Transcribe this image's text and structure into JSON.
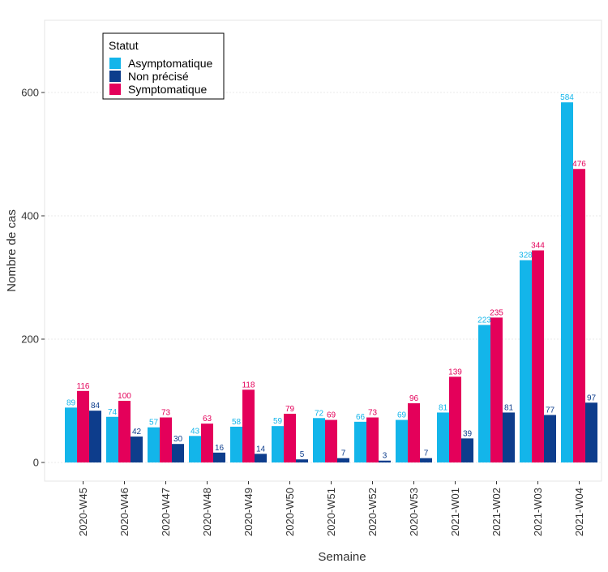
{
  "chart_data": {
    "type": "bar",
    "categories": [
      "2020-W45",
      "2020-W46",
      "2020-W47",
      "2020-W48",
      "2020-W49",
      "2020-W50",
      "2020-W51",
      "2020-W52",
      "2020-W53",
      "2021-W01",
      "2021-W02",
      "2021-W03",
      "2021-W04"
    ],
    "series": [
      {
        "name": "Asymptomatique",
        "color": "#13b5ea",
        "values": [
          89,
          74,
          57,
          43,
          58,
          59,
          72,
          66,
          69,
          81,
          223,
          328,
          584
        ]
      },
      {
        "name": "Symptomatique",
        "color": "#e4005a",
        "values": [
          116,
          100,
          73,
          63,
          118,
          79,
          69,
          73,
          96,
          139,
          235,
          344,
          476
        ]
      },
      {
        "name": "Non précisé",
        "color": "#0d3d8c",
        "values": [
          84,
          42,
          30,
          16,
          14,
          5,
          7,
          3,
          7,
          39,
          81,
          77,
          97
        ]
      }
    ],
    "xlabel": "Semaine",
    "ylabel": "Nombre de cas",
    "ylim": [
      -35,
      720
    ],
    "yticks": [
      0,
      200,
      400,
      600
    ],
    "grid": true,
    "legend": {
      "title": "Statut",
      "position": "top-left",
      "entries": [
        {
          "label": "Asymptomatique",
          "color": "#13b5ea"
        },
        {
          "label": "Non précisé",
          "color": "#0d3d8c"
        },
        {
          "label": "Symptomatique",
          "color": "#e4005a"
        }
      ]
    }
  }
}
